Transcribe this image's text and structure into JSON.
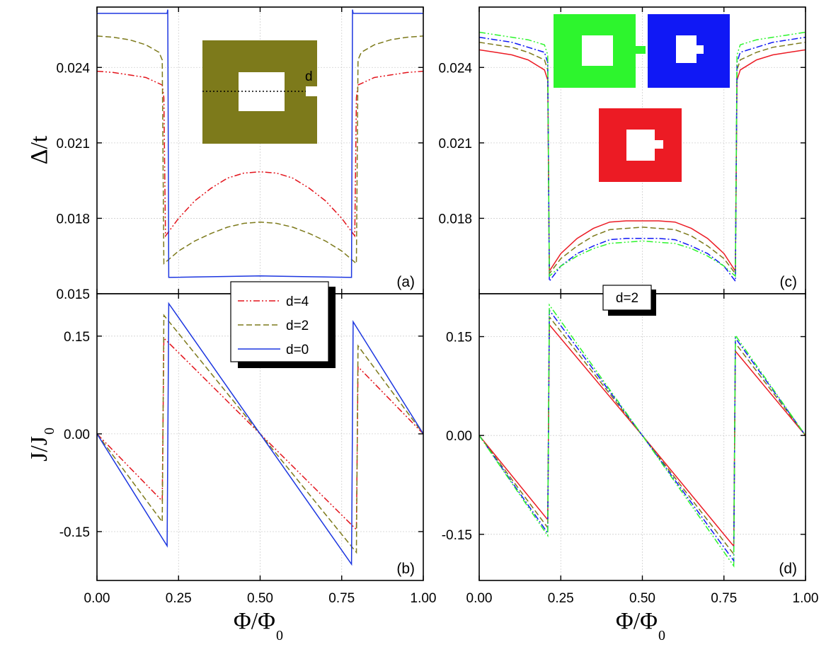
{
  "chart_data": [
    {
      "panel": "(a)",
      "type": "line",
      "ylabel": "Δ/t",
      "xlim": [
        0,
        1
      ],
      "ylim": [
        0.015,
        0.0264
      ],
      "yticks": [
        "0.015",
        "0.018",
        "0.021",
        "0.024"
      ],
      "yticks_values": [
        0.015,
        0.018,
        0.021,
        0.024
      ],
      "grid": true,
      "inset_label": "d",
      "series": [
        {
          "name": "d=4",
          "color": "#e3131b",
          "style": "dashdotdot",
          "x": [
            0,
            0.05,
            0.1,
            0.15,
            0.2,
            0.205,
            0.21,
            0.25,
            0.3,
            0.35,
            0.4,
            0.45,
            0.5,
            0.55,
            0.6,
            0.65,
            0.7,
            0.75,
            0.79,
            0.795,
            0.8,
            0.85,
            0.9,
            0.95,
            1.0
          ],
          "y": [
            0.02385,
            0.0238,
            0.0237,
            0.0236,
            0.0233,
            0.0228,
            0.0173,
            0.018,
            0.0187,
            0.0192,
            0.0196,
            0.0198,
            0.01985,
            0.0198,
            0.0196,
            0.0192,
            0.0187,
            0.018,
            0.0173,
            0.0228,
            0.0233,
            0.0236,
            0.0237,
            0.0238,
            0.02385
          ]
        },
        {
          "name": "d=2",
          "color": "#7d7a1b",
          "style": "dashed",
          "x": [
            0,
            0.05,
            0.1,
            0.15,
            0.19,
            0.2,
            0.205,
            0.25,
            0.3,
            0.35,
            0.4,
            0.45,
            0.5,
            0.55,
            0.6,
            0.65,
            0.7,
            0.75,
            0.795,
            0.8,
            0.81,
            0.85,
            0.9,
            0.95,
            1.0
          ],
          "y": [
            0.02525,
            0.0252,
            0.0251,
            0.0249,
            0.0246,
            0.0243,
            0.0162,
            0.0167,
            0.0171,
            0.0174,
            0.01765,
            0.0178,
            0.01785,
            0.0178,
            0.01765,
            0.0174,
            0.0171,
            0.0167,
            0.0162,
            0.0243,
            0.0246,
            0.0249,
            0.0251,
            0.0252,
            0.02525
          ]
        },
        {
          "name": "d=0",
          "color": "#1c36e0",
          "style": "solid",
          "x": [
            0,
            0.215,
            0.217,
            0.22,
            0.5,
            0.78,
            0.783,
            0.785,
            1.0
          ],
          "y": [
            0.02615,
            0.02615,
            0.0263,
            0.01565,
            0.01571,
            0.01565,
            0.0263,
            0.02615,
            0.02615
          ]
        }
      ]
    },
    {
      "panel": "(b)",
      "type": "line",
      "ylabel": "J/J",
      "ylabel_sub": "0",
      "xlabel": "Φ/Φ",
      "xlabel_sub": "0",
      "xlim": [
        0,
        1
      ],
      "ylim": [
        -0.225,
        0.215
      ],
      "xticks": [
        "0.00",
        "0.25",
        "0.50",
        "0.75",
        "1.00"
      ],
      "xticks_values": [
        0,
        0.25,
        0.5,
        0.75,
        1.0
      ],
      "yticks": [
        "-0.15",
        "0.00",
        "0.15"
      ],
      "yticks_values": [
        -0.15,
        0,
        0.15
      ],
      "grid": true,
      "series": [
        {
          "name": "d=4",
          "color": "#e3131b",
          "style": "dashdotdot",
          "x": [
            0,
            0.2,
            0.205,
            0.5,
            0.795,
            0.8,
            1.0
          ],
          "y": [
            0,
            -0.103,
            0.147,
            0,
            -0.147,
            0.103,
            0
          ]
        },
        {
          "name": "d=2",
          "color": "#7d7a1b",
          "style": "dashed",
          "x": [
            0,
            0.2,
            0.205,
            0.5,
            0.795,
            0.8,
            1.0
          ],
          "y": [
            0,
            -0.135,
            0.182,
            0,
            -0.182,
            0.135,
            0
          ]
        },
        {
          "name": "d=0",
          "color": "#1c36e0",
          "style": "solid",
          "x": [
            0,
            0.215,
            0.22,
            0.5,
            0.78,
            0.785,
            1.0
          ],
          "y": [
            0,
            -0.172,
            0.2,
            0,
            -0.2,
            0.172,
            0
          ]
        }
      ]
    },
    {
      "panel": "(c)",
      "type": "line",
      "xlim": [
        0,
        1
      ],
      "ylim": [
        0.015,
        0.0264
      ],
      "yticks": [
        "0.018",
        "0.021",
        "0.024"
      ],
      "yticks_values": [
        0.018,
        0.021,
        0.024
      ],
      "grid": true,
      "inset_colors": [
        "#2df52d",
        "#1018f5",
        "#ec1b24"
      ],
      "series": [
        {
          "color": "#ec1b24",
          "style": "solid",
          "x": [
            0,
            0.05,
            0.1,
            0.15,
            0.2,
            0.21,
            0.215,
            0.25,
            0.3,
            0.35,
            0.4,
            0.45,
            0.5,
            0.55,
            0.6,
            0.65,
            0.7,
            0.75,
            0.785,
            0.79,
            0.8,
            0.85,
            0.9,
            0.95,
            1.0
          ],
          "y": [
            0.0247,
            0.0246,
            0.0245,
            0.0243,
            0.0239,
            0.0235,
            0.0159,
            0.0166,
            0.0172,
            0.0176,
            0.01785,
            0.0179,
            0.0179,
            0.0179,
            0.01785,
            0.0176,
            0.0172,
            0.0166,
            0.0159,
            0.0235,
            0.0239,
            0.0243,
            0.0245,
            0.0246,
            0.0247
          ]
        },
        {
          "color": "#7d7a1b",
          "style": "dashed",
          "x": [
            0,
            0.05,
            0.1,
            0.15,
            0.2,
            0.21,
            0.215,
            0.25,
            0.3,
            0.35,
            0.4,
            0.45,
            0.5,
            0.55,
            0.6,
            0.65,
            0.7,
            0.75,
            0.785,
            0.79,
            0.8,
            0.85,
            0.9,
            0.95,
            1.0
          ],
          "y": [
            0.025,
            0.0249,
            0.0248,
            0.0246,
            0.0243,
            0.0239,
            0.0158,
            0.0164,
            0.0169,
            0.0173,
            0.01755,
            0.0176,
            0.01765,
            0.0176,
            0.01755,
            0.0173,
            0.0169,
            0.0164,
            0.0158,
            0.0239,
            0.0243,
            0.0246,
            0.0248,
            0.0249,
            0.025
          ]
        },
        {
          "color": "#1018f5",
          "style": "dashdot",
          "x": [
            0,
            0.05,
            0.1,
            0.15,
            0.2,
            0.21,
            0.215,
            0.25,
            0.3,
            0.35,
            0.4,
            0.45,
            0.5,
            0.55,
            0.6,
            0.65,
            0.7,
            0.75,
            0.785,
            0.79,
            0.8,
            0.85,
            0.9,
            0.95,
            1.0
          ],
          "y": [
            0.0252,
            0.0251,
            0.025,
            0.0248,
            0.0246,
            0.0242,
            0.0155,
            0.0161,
            0.0166,
            0.0169,
            0.01715,
            0.0172,
            0.0172,
            0.0172,
            0.01715,
            0.0169,
            0.0166,
            0.0161,
            0.0155,
            0.0242,
            0.0246,
            0.0248,
            0.025,
            0.0251,
            0.0252
          ]
        },
        {
          "color": "#2df52d",
          "style": "dashdotdot",
          "x": [
            0,
            0.05,
            0.1,
            0.15,
            0.2,
            0.21,
            0.215,
            0.25,
            0.3,
            0.35,
            0.4,
            0.45,
            0.5,
            0.55,
            0.6,
            0.65,
            0.7,
            0.75,
            0.785,
            0.79,
            0.8,
            0.85,
            0.9,
            0.95,
            1.0
          ],
          "y": [
            0.0254,
            0.0253,
            0.0252,
            0.0251,
            0.0249,
            0.0245,
            0.0157,
            0.0161,
            0.0165,
            0.0168,
            0.017,
            0.01705,
            0.0171,
            0.01705,
            0.017,
            0.0168,
            0.0165,
            0.0161,
            0.0157,
            0.0245,
            0.0249,
            0.0251,
            0.0252,
            0.0253,
            0.0254
          ]
        }
      ]
    },
    {
      "panel": "(d)",
      "type": "line",
      "legend_text": "d=2",
      "xlabel": "Φ/Φ",
      "xlabel_sub": "0",
      "xlim": [
        0,
        1
      ],
      "ylim": [
        -0.22,
        0.215
      ],
      "xticks": [
        "0.00",
        "0.25",
        "0.50",
        "0.75",
        "1.00"
      ],
      "xticks_values": [
        0,
        0.25,
        0.5,
        0.75,
        1.0
      ],
      "yticks": [
        "-0.15",
        "0.00",
        "0.15"
      ],
      "yticks_values": [
        -0.15,
        0,
        0.15
      ],
      "grid": true,
      "series": [
        {
          "color": "#ec1b24",
          "style": "solid",
          "x": [
            0,
            0.21,
            0.215,
            0.5,
            0.78,
            0.785,
            1.0
          ],
          "y": [
            0,
            -0.128,
            0.168,
            0,
            -0.168,
            0.128,
            0
          ]
        },
        {
          "color": "#7d7a1b",
          "style": "dashed",
          "x": [
            0,
            0.21,
            0.215,
            0.5,
            0.78,
            0.785,
            1.0
          ],
          "y": [
            0,
            -0.14,
            0.18,
            0,
            -0.18,
            0.14,
            0
          ]
        },
        {
          "color": "#1018f5",
          "style": "dashdot",
          "x": [
            0,
            0.21,
            0.215,
            0.5,
            0.78,
            0.785,
            1.0
          ],
          "y": [
            0,
            -0.148,
            0.19,
            0,
            -0.19,
            0.148,
            0
          ]
        },
        {
          "color": "#2df52d",
          "style": "dashdotdot",
          "x": [
            0,
            0.21,
            0.215,
            0.5,
            0.78,
            0.785,
            1.0
          ],
          "y": [
            0,
            -0.152,
            0.198,
            0,
            -0.198,
            0.152,
            0
          ]
        }
      ]
    }
  ]
}
